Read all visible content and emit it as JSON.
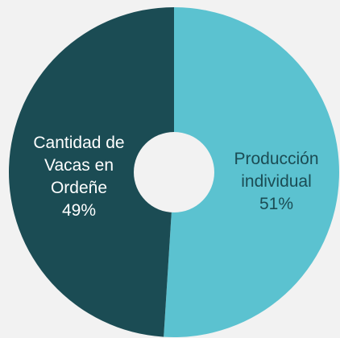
{
  "chart_data": {
    "type": "donut",
    "categories": [
      "Producción individual",
      "Cantidad de Vacas en Ordeñe"
    ],
    "values": [
      51,
      49
    ],
    "value_labels": [
      "51%",
      "49%"
    ],
    "colors": [
      "#5bc2d0",
      "#1b4c54"
    ],
    "label_colors": [
      "#1b4c54",
      "#ffffff"
    ]
  }
}
